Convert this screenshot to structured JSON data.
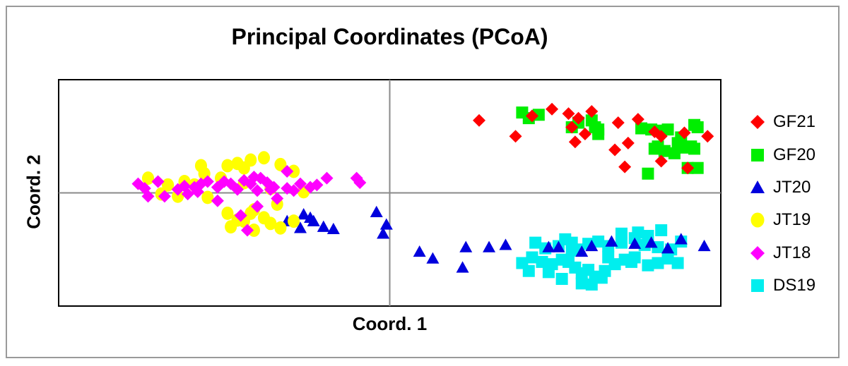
{
  "chart_data": {
    "type": "scatter",
    "title": "Principal Coordinates (PCoA)",
    "xlabel": "Coord. 1",
    "ylabel": "Coord. 2",
    "xlim": [
      -1.0,
      1.0
    ],
    "ylim": [
      -1.0,
      1.0
    ],
    "ref_lines": {
      "x": 0,
      "y": 0
    },
    "grid": false,
    "legend_position": "right",
    "series": [
      {
        "name": "GF21",
        "marker": "diamond",
        "color": "#ff0000",
        "points": [
          [
            0.27,
            0.64
          ],
          [
            0.43,
            0.68
          ],
          [
            0.49,
            0.74
          ],
          [
            0.54,
            0.7
          ],
          [
            0.57,
            0.66
          ],
          [
            0.61,
            0.72
          ],
          [
            0.38,
            0.5
          ],
          [
            0.55,
            0.58
          ],
          [
            0.59,
            0.52
          ],
          [
            0.68,
            0.38
          ],
          [
            0.56,
            0.45
          ],
          [
            0.75,
            0.65
          ],
          [
            0.69,
            0.62
          ],
          [
            0.8,
            0.54
          ],
          [
            0.82,
            0.5
          ],
          [
            0.89,
            0.53
          ],
          [
            0.96,
            0.5
          ],
          [
            0.72,
            0.44
          ],
          [
            0.71,
            0.23
          ],
          [
            0.82,
            0.28
          ],
          [
            0.9,
            0.22
          ]
        ]
      },
      {
        "name": "GF20",
        "marker": "square",
        "color": "#00ee00",
        "points": [
          [
            0.4,
            0.71
          ],
          [
            0.42,
            0.66
          ],
          [
            0.45,
            0.69
          ],
          [
            0.55,
            0.58
          ],
          [
            0.57,
            0.62
          ],
          [
            0.61,
            0.64
          ],
          [
            0.62,
            0.58
          ],
          [
            0.63,
            0.56
          ],
          [
            0.63,
            0.52
          ],
          [
            0.76,
            0.57
          ],
          [
            0.79,
            0.56
          ],
          [
            0.82,
            0.55
          ],
          [
            0.84,
            0.56
          ],
          [
            0.88,
            0.49
          ],
          [
            0.92,
            0.6
          ],
          [
            0.93,
            0.58
          ],
          [
            0.87,
            0.44
          ],
          [
            0.89,
            0.4
          ],
          [
            0.91,
            0.41
          ],
          [
            0.92,
            0.39
          ],
          [
            0.83,
            0.37
          ],
          [
            0.86,
            0.35
          ],
          [
            0.9,
            0.22
          ],
          [
            0.93,
            0.22
          ],
          [
            0.8,
            0.39
          ],
          [
            0.78,
            0.17
          ],
          [
            0.81,
            0.41
          ]
        ]
      },
      {
        "name": "JT20",
        "marker": "triangle",
        "color": "#0000dd",
        "points": [
          [
            -0.31,
            -0.25
          ],
          [
            -0.27,
            -0.31
          ],
          [
            -0.24,
            -0.22
          ],
          [
            -0.23,
            -0.25
          ],
          [
            -0.26,
            -0.19
          ],
          [
            -0.17,
            -0.32
          ],
          [
            -0.2,
            -0.3
          ],
          [
            -0.04,
            -0.17
          ],
          [
            -0.01,
            -0.28
          ],
          [
            -0.02,
            -0.36
          ],
          [
            0.09,
            -0.52
          ],
          [
            0.13,
            -0.58
          ],
          [
            0.23,
            -0.48
          ],
          [
            0.3,
            -0.48
          ],
          [
            0.35,
            -0.46
          ],
          [
            0.22,
            -0.66
          ],
          [
            0.48,
            -0.48
          ],
          [
            0.51,
            -0.48
          ],
          [
            0.58,
            -0.52
          ],
          [
            0.61,
            -0.47
          ],
          [
            0.67,
            -0.43
          ],
          [
            0.74,
            -0.45
          ],
          [
            0.79,
            -0.44
          ],
          [
            0.84,
            -0.49
          ],
          [
            0.88,
            -0.41
          ],
          [
            0.95,
            -0.47
          ]
        ]
      },
      {
        "name": "JT19",
        "marker": "circle",
        "color": "#ffff00",
        "points": [
          [
            -0.73,
            0.13
          ],
          [
            -0.67,
            0.07
          ],
          [
            -0.69,
            -0.01
          ],
          [
            -0.64,
            -0.03
          ],
          [
            -0.62,
            0.1
          ],
          [
            -0.57,
            0.24
          ],
          [
            -0.49,
            0.24
          ],
          [
            -0.46,
            0.26
          ],
          [
            -0.42,
            0.29
          ],
          [
            -0.38,
            0.31
          ],
          [
            -0.33,
            0.25
          ],
          [
            -0.29,
            0.19
          ],
          [
            -0.26,
            0.01
          ],
          [
            -0.44,
            0.09
          ],
          [
            -0.55,
            -0.04
          ],
          [
            -0.48,
            -0.3
          ],
          [
            -0.44,
            -0.25
          ],
          [
            -0.41,
            -0.33
          ],
          [
            -0.38,
            -0.22
          ],
          [
            -0.36,
            -0.27
          ],
          [
            -0.33,
            -0.31
          ],
          [
            -0.46,
            -0.24
          ],
          [
            -0.42,
            -0.18
          ],
          [
            -0.49,
            -0.18
          ],
          [
            -0.41,
            -0.15
          ],
          [
            -0.44,
            0.22
          ],
          [
            -0.51,
            0.13
          ],
          [
            -0.56,
            0.17
          ],
          [
            -0.59,
            0.07
          ],
          [
            -0.36,
            0.04
          ],
          [
            -0.29,
            -0.25
          ],
          [
            -0.34,
            -0.1
          ]
        ]
      },
      {
        "name": "JT18",
        "marker": "diamond",
        "color": "#ff00ff",
        "points": [
          [
            -0.76,
            0.08
          ],
          [
            -0.74,
            0.04
          ],
          [
            -0.7,
            0.1
          ],
          [
            -0.73,
            -0.03
          ],
          [
            -0.68,
            -0.03
          ],
          [
            -0.64,
            0.03
          ],
          [
            -0.62,
            0.06
          ],
          [
            -0.61,
            -0.01
          ],
          [
            -0.59,
            0.05
          ],
          [
            -0.57,
            0.08
          ],
          [
            -0.55,
            0.1
          ],
          [
            -0.52,
            0.05
          ],
          [
            -0.5,
            0.1
          ],
          [
            -0.48,
            0.08
          ],
          [
            -0.46,
            0.03
          ],
          [
            -0.44,
            0.11
          ],
          [
            -0.42,
            0.08
          ],
          [
            -0.4,
            0.02
          ],
          [
            -0.39,
            0.13
          ],
          [
            -0.37,
            0.09
          ],
          [
            -0.35,
            0.05
          ],
          [
            -0.31,
            0.04
          ],
          [
            -0.27,
            0.08
          ],
          [
            -0.24,
            0.05
          ],
          [
            -0.22,
            0.07
          ],
          [
            -0.19,
            0.13
          ],
          [
            -0.52,
            -0.07
          ],
          [
            -0.45,
            -0.2
          ],
          [
            -0.43,
            -0.33
          ],
          [
            -0.4,
            -0.12
          ],
          [
            -0.36,
            0.03
          ],
          [
            -0.31,
            0.19
          ],
          [
            -0.41,
            0.14
          ],
          [
            -0.1,
            0.13
          ],
          [
            -0.09,
            0.09
          ],
          [
            -0.34,
            -0.05
          ],
          [
            -0.29,
            0.02
          ],
          [
            -0.58,
            0.01
          ]
        ]
      },
      {
        "name": "DS19",
        "marker": "square",
        "color": "#00eeee",
        "points": [
          [
            0.44,
            -0.44
          ],
          [
            0.47,
            -0.49
          ],
          [
            0.51,
            -0.47
          ],
          [
            0.53,
            -0.41
          ],
          [
            0.55,
            -0.44
          ],
          [
            0.57,
            -0.5
          ],
          [
            0.6,
            -0.45
          ],
          [
            0.63,
            -0.43
          ],
          [
            0.66,
            -0.47
          ],
          [
            0.7,
            -0.44
          ],
          [
            0.74,
            -0.4
          ],
          [
            0.77,
            -0.46
          ],
          [
            0.81,
            -0.48
          ],
          [
            0.85,
            -0.5
          ],
          [
            0.88,
            -0.43
          ],
          [
            0.82,
            -0.33
          ],
          [
            0.78,
            -0.38
          ],
          [
            0.75,
            -0.35
          ],
          [
            0.43,
            -0.57
          ],
          [
            0.46,
            -0.61
          ],
          [
            0.49,
            -0.63
          ],
          [
            0.52,
            -0.59
          ],
          [
            0.56,
            -0.66
          ],
          [
            0.58,
            -0.71
          ],
          [
            0.62,
            -0.74
          ],
          [
            0.65,
            -0.69
          ],
          [
            0.68,
            -0.63
          ],
          [
            0.71,
            -0.59
          ],
          [
            0.74,
            -0.57
          ],
          [
            0.78,
            -0.64
          ],
          [
            0.81,
            -0.62
          ],
          [
            0.84,
            -0.58
          ],
          [
            0.87,
            -0.62
          ],
          [
            0.54,
            -0.61
          ],
          [
            0.6,
            -0.68
          ],
          [
            0.66,
            -0.57
          ],
          [
            0.55,
            -0.51
          ],
          [
            0.4,
            -0.62
          ],
          [
            0.42,
            -0.69
          ],
          [
            0.48,
            -0.7
          ],
          [
            0.52,
            -0.76
          ],
          [
            0.58,
            -0.8
          ],
          [
            0.61,
            -0.81
          ],
          [
            0.64,
            -0.75
          ],
          [
            0.7,
            -0.36
          ],
          [
            0.73,
            -0.61
          ]
        ]
      }
    ]
  }
}
